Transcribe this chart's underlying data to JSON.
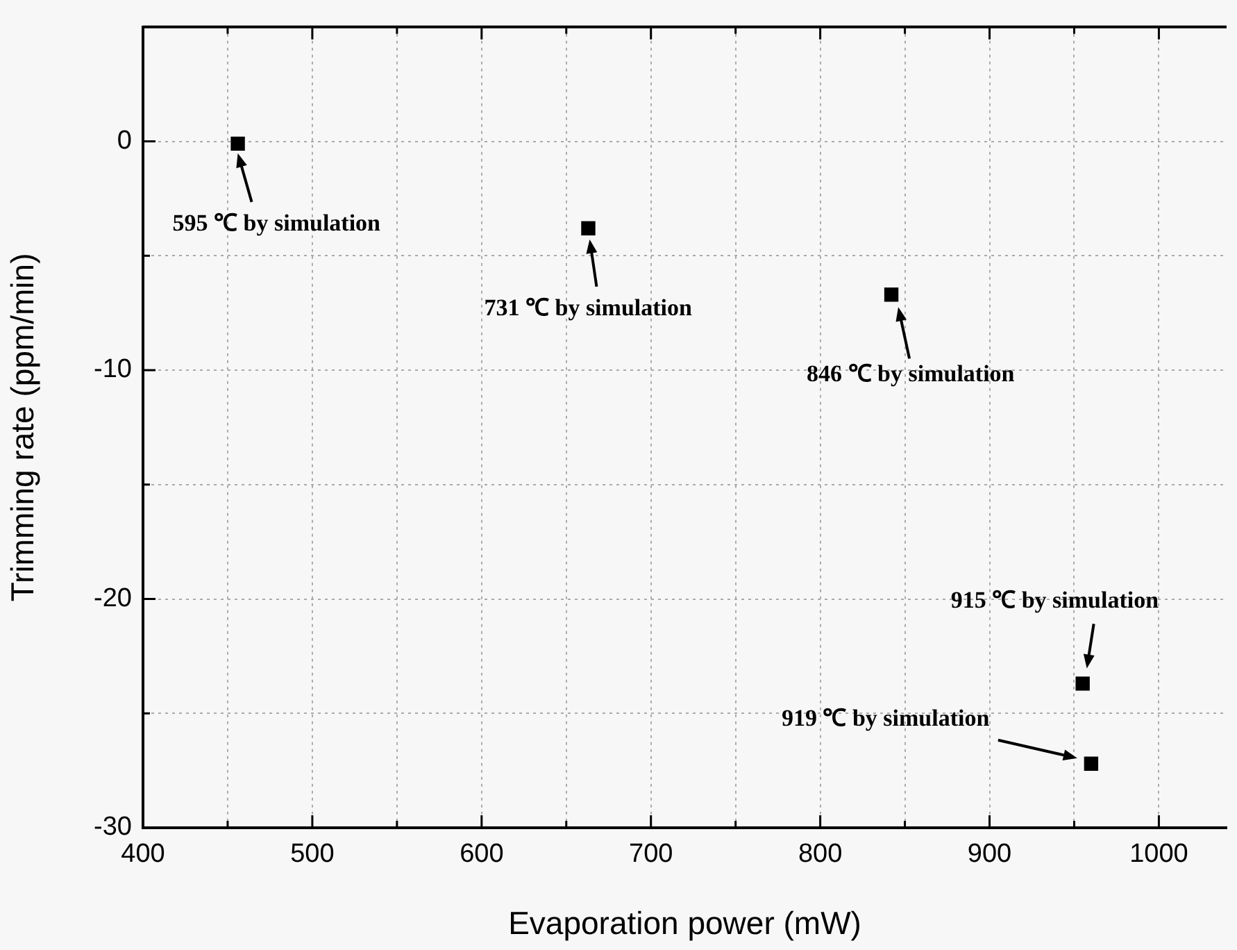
{
  "chart_data": {
    "type": "scatter",
    "xlabel": "Evaporation power (mW)",
    "ylabel": "Trimming rate (ppm/min)",
    "x": [
      456,
      663,
      842,
      955,
      960
    ],
    "series": [
      {
        "color": "#000000",
        "values": [
          -0.1,
          -3.8,
          -6.7,
          -23.7,
          -27.2
        ]
      }
    ],
    "xlim": [
      400,
      1040
    ],
    "xticks": [
      400,
      {
        "value": 450,
        "label": null
      },
      500,
      {
        "value": 550,
        "label": null
      },
      600,
      {
        "value": 650,
        "label": null
      },
      700,
      {
        "value": 750,
        "label": null
      },
      800,
      {
        "value": 850,
        "label": null
      },
      900,
      {
        "value": 950,
        "label": null
      },
      1000
    ],
    "ylim": [
      -30,
      5
    ],
    "yticks": [
      -30,
      {
        "value": -25,
        "label": null
      },
      -20,
      {
        "value": -15,
        "label": null
      },
      -10,
      {
        "value": -5,
        "label": null
      },
      0
    ],
    "grid": true,
    "legend": false,
    "marker": "square",
    "annotations": [
      {
        "text": "595 ℃ by simulation",
        "x": 456,
        "y": -0.1
      },
      {
        "text": "731 ℃ by simulation",
        "x": 663,
        "y": -3.8
      },
      {
        "text": "846 ℃ by simulation",
        "x": 842,
        "y": -6.7
      },
      {
        "text": "915 ℃ by simulation",
        "x": 955,
        "y": -23.7
      },
      "919 ℃ by simulation"
    ]
  }
}
